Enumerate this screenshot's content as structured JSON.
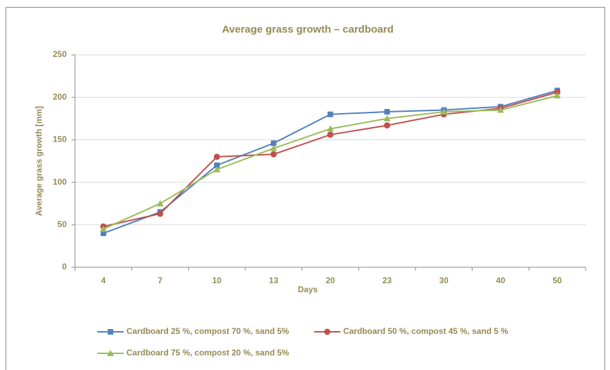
{
  "chart_data": {
    "type": "line",
    "title": "Average grass growth – cardboard",
    "x_label": "Days",
    "y_label": "Average grass growth [mm]",
    "categories": [
      "4",
      "7",
      "10",
      "13",
      "20",
      "23",
      "30",
      "40",
      "50"
    ],
    "series": [
      {
        "name": "Cardboard 25 %, compost 70 %, sand 5%",
        "color": "#4f81bd",
        "marker": "square",
        "values": [
          40,
          65,
          120,
          146,
          180,
          183,
          185,
          189,
          208
        ]
      },
      {
        "name": "Cardboard 50 %, compost 45 %, sand 5 %",
        "color": "#c0504d",
        "marker": "circle",
        "values": [
          48,
          63,
          130,
          133,
          156,
          167,
          180,
          187,
          206
        ]
      },
      {
        "name": "Cardboard 75 %, compost 20 %, sand 5%",
        "color": "#9bbb59",
        "marker": "triangle",
        "values": [
          45,
          75,
          115,
          140,
          163,
          175,
          183,
          185,
          202
        ]
      }
    ],
    "ylim": [
      0,
      250
    ],
    "yticks": [
      0,
      50,
      100,
      150,
      200,
      250
    ],
    "grid": true,
    "legend": "bottom"
  }
}
